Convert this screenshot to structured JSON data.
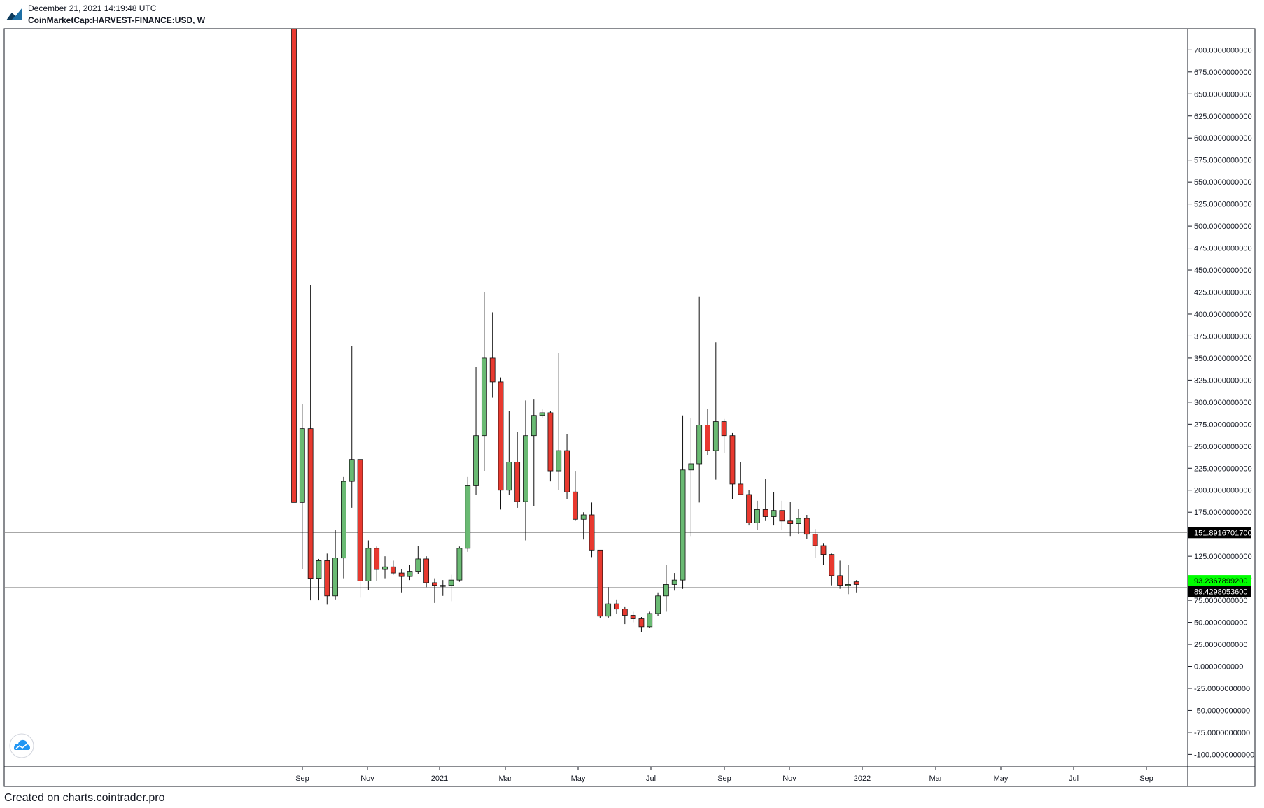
{
  "header": {
    "date": "December 21, 2021 14:19:48 UTC",
    "symbol": "CoinMarketCap:HARVEST-FINANCE:USD, W"
  },
  "footer": {
    "credit": "Created on charts.cointrader.pro"
  },
  "colors": {
    "up": "#6aba73",
    "down": "#e8392f",
    "wick": "#111111",
    "axis": "#131722",
    "last_price_bg": "#00ff00",
    "price_label_bg": "#000000"
  },
  "icons": {
    "logo": "cointrader-logo-icon",
    "watermark": "tradingview-cloud-icon"
  },
  "chart_data": {
    "type": "candlestick",
    "interval": "W",
    "ylim": [
      -110,
      730
    ],
    "y_ticks": [
      700,
      675,
      650,
      625,
      600,
      575,
      550,
      525,
      500,
      475,
      450,
      425,
      400,
      375,
      350,
      325,
      300,
      275,
      250,
      225,
      200,
      175,
      150,
      125,
      100,
      75,
      50,
      25,
      0,
      -25,
      -50,
      -75,
      -100
    ],
    "x_labels": [
      "Sep",
      "Nov",
      "2021",
      "Mar",
      "May",
      "Jul",
      "Sep",
      "Nov",
      "2022",
      "Mar",
      "May",
      "Jul",
      "Sep"
    ],
    "horizontal_lines": [
      {
        "value": 151.89167017,
        "label": "151.8916701700"
      },
      {
        "value": 89.42980536,
        "label": "89.4298053600"
      }
    ],
    "last_price": {
      "value": 93.23678992,
      "label": "93.2367899200"
    },
    "candles": [
      {
        "o": 740,
        "h": 740,
        "l": 186,
        "c": 186
      },
      {
        "o": 186,
        "h": 298,
        "l": 110,
        "c": 270
      },
      {
        "o": 270,
        "h": 433,
        "l": 75,
        "c": 100
      },
      {
        "o": 100,
        "h": 122,
        "l": 75,
        "c": 120
      },
      {
        "o": 120,
        "h": 128,
        "l": 70,
        "c": 80
      },
      {
        "o": 80,
        "h": 155,
        "l": 76,
        "c": 123
      },
      {
        "o": 123,
        "h": 215,
        "l": 100,
        "c": 210
      },
      {
        "o": 210,
        "h": 364,
        "l": 180,
        "c": 235
      },
      {
        "o": 235,
        "h": 235,
        "l": 78,
        "c": 97
      },
      {
        "o": 97,
        "h": 143,
        "l": 87,
        "c": 134
      },
      {
        "o": 134,
        "h": 136,
        "l": 97,
        "c": 110
      },
      {
        "o": 110,
        "h": 125,
        "l": 100,
        "c": 113
      },
      {
        "o": 113,
        "h": 120,
        "l": 104,
        "c": 106
      },
      {
        "o": 106,
        "h": 110,
        "l": 84,
        "c": 102
      },
      {
        "o": 102,
        "h": 115,
        "l": 98,
        "c": 108
      },
      {
        "o": 108,
        "h": 137,
        "l": 105,
        "c": 122
      },
      {
        "o": 122,
        "h": 125,
        "l": 90,
        "c": 95
      },
      {
        "o": 95,
        "h": 100,
        "l": 72,
        "c": 92
      },
      {
        "o": 92,
        "h": 98,
        "l": 80,
        "c": 92
      },
      {
        "o": 92,
        "h": 104,
        "l": 74,
        "c": 98
      },
      {
        "o": 98,
        "h": 136,
        "l": 96,
        "c": 134
      },
      {
        "o": 134,
        "h": 215,
        "l": 130,
        "c": 205
      },
      {
        "o": 205,
        "h": 340,
        "l": 195,
        "c": 262
      },
      {
        "o": 262,
        "h": 425,
        "l": 222,
        "c": 350
      },
      {
        "o": 350,
        "h": 402,
        "l": 305,
        "c": 323
      },
      {
        "o": 323,
        "h": 328,
        "l": 178,
        "c": 200
      },
      {
        "o": 200,
        "h": 290,
        "l": 195,
        "c": 232
      },
      {
        "o": 232,
        "h": 266,
        "l": 180,
        "c": 187
      },
      {
        "o": 187,
        "h": 302,
        "l": 143,
        "c": 262
      },
      {
        "o": 262,
        "h": 303,
        "l": 182,
        "c": 285
      },
      {
        "o": 285,
        "h": 292,
        "l": 282,
        "c": 288
      },
      {
        "o": 288,
        "h": 290,
        "l": 210,
        "c": 222
      },
      {
        "o": 222,
        "h": 356,
        "l": 200,
        "c": 245
      },
      {
        "o": 245,
        "h": 264,
        "l": 190,
        "c": 198
      },
      {
        "o": 198,
        "h": 222,
        "l": 165,
        "c": 167
      },
      {
        "o": 167,
        "h": 175,
        "l": 144,
        "c": 172
      },
      {
        "o": 172,
        "h": 186,
        "l": 124,
        "c": 132
      },
      {
        "o": 132,
        "h": 132,
        "l": 55,
        "c": 57
      },
      {
        "o": 57,
        "h": 90,
        "l": 55,
        "c": 71
      },
      {
        "o": 71,
        "h": 76,
        "l": 60,
        "c": 65
      },
      {
        "o": 65,
        "h": 68,
        "l": 48,
        "c": 58
      },
      {
        "o": 58,
        "h": 62,
        "l": 50,
        "c": 54
      },
      {
        "o": 54,
        "h": 56,
        "l": 39,
        "c": 45
      },
      {
        "o": 45,
        "h": 62,
        "l": 44,
        "c": 60
      },
      {
        "o": 60,
        "h": 84,
        "l": 57,
        "c": 80
      },
      {
        "o": 80,
        "h": 115,
        "l": 62,
        "c": 93
      },
      {
        "o": 93,
        "h": 106,
        "l": 86,
        "c": 98
      },
      {
        "o": 98,
        "h": 285,
        "l": 88,
        "c": 223
      },
      {
        "o": 223,
        "h": 282,
        "l": 148,
        "c": 230
      },
      {
        "o": 230,
        "h": 420,
        "l": 186,
        "c": 274
      },
      {
        "o": 274,
        "h": 292,
        "l": 240,
        "c": 245
      },
      {
        "o": 245,
        "h": 368,
        "l": 212,
        "c": 278
      },
      {
        "o": 278,
        "h": 281,
        "l": 242,
        "c": 262
      },
      {
        "o": 262,
        "h": 265,
        "l": 190,
        "c": 207
      },
      {
        "o": 207,
        "h": 232,
        "l": 195,
        "c": 195
      },
      {
        "o": 195,
        "h": 200,
        "l": 160,
        "c": 163
      },
      {
        "o": 163,
        "h": 188,
        "l": 155,
        "c": 178
      },
      {
        "o": 178,
        "h": 213,
        "l": 165,
        "c": 170
      },
      {
        "o": 170,
        "h": 198,
        "l": 160,
        "c": 177
      },
      {
        "o": 177,
        "h": 188,
        "l": 155,
        "c": 165
      },
      {
        "o": 165,
        "h": 187,
        "l": 148,
        "c": 162
      },
      {
        "o": 162,
        "h": 179,
        "l": 150,
        "c": 168
      },
      {
        "o": 168,
        "h": 172,
        "l": 145,
        "c": 150
      },
      {
        "o": 150,
        "h": 156,
        "l": 123,
        "c": 137
      },
      {
        "o": 137,
        "h": 140,
        "l": 115,
        "c": 127
      },
      {
        "o": 127,
        "h": 128,
        "l": 92,
        "c": 103
      },
      {
        "o": 103,
        "h": 120,
        "l": 88,
        "c": 92
      },
      {
        "o": 92,
        "h": 115,
        "l": 82,
        "c": 93
      },
      {
        "o": 96,
        "h": 98,
        "l": 84,
        "c": 93
      }
    ]
  }
}
